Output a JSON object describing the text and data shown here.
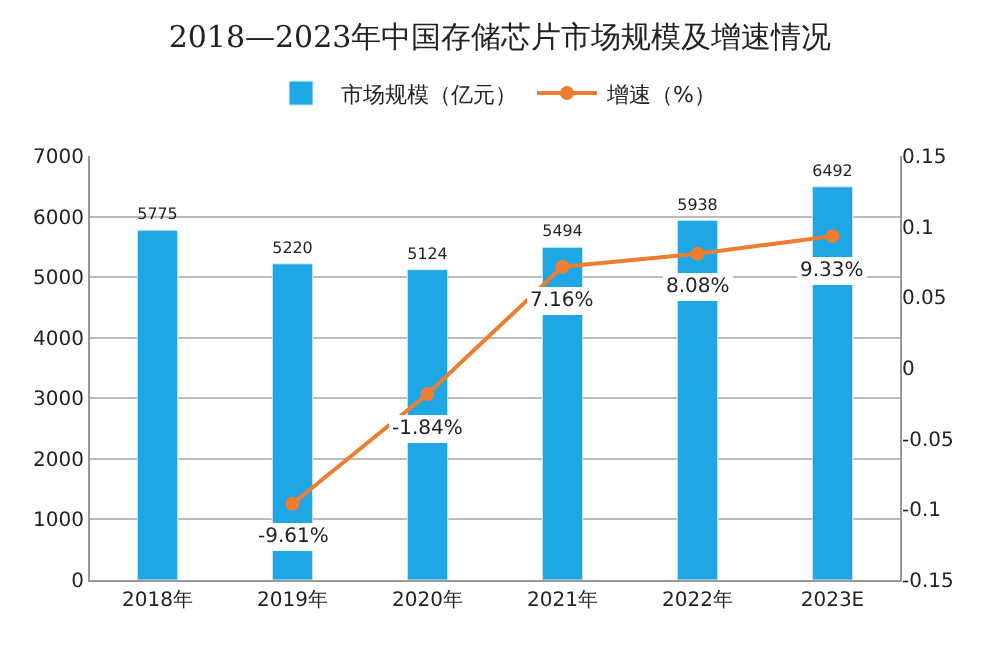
{
  "chart_data": {
    "type": "bar",
    "title": "2018—2023年中国存储芯片市场规模及增速情况",
    "categories": [
      "2018年",
      "2019年",
      "2020年",
      "2021年",
      "2022年",
      "2023E"
    ],
    "series": [
      {
        "name": "市场规模（亿元）",
        "color": "#1ea7e4",
        "values": [
          5775,
          5220,
          5124,
          5494,
          5938,
          6492
        ],
        "value_labels": [
          "5775",
          "5220",
          "5124",
          "5494",
          "5938",
          "6492"
        ]
      },
      {
        "name": "增速（%）",
        "type": "line",
        "axis": "y2",
        "color": "#ed7d31",
        "marker": "circle",
        "values": [
          null,
          -0.0961,
          -0.0184,
          0.0716,
          0.0808,
          0.0933
        ],
        "value_labels": [
          null,
          "-9.61%",
          "-1.84%",
          "7.16%",
          "8.08%",
          "9.33%"
        ]
      }
    ],
    "ylim": [
      0,
      7000
    ],
    "yticks": [
      0,
      1000,
      2000,
      3000,
      4000,
      5000,
      6000,
      7000
    ],
    "y2lim": [
      -0.15,
      0.15
    ],
    "y2ticks": [
      -0.15,
      -0.1,
      -0.05,
      0,
      0.05,
      0.1,
      0.15
    ],
    "grid": "y",
    "legend": "top"
  }
}
